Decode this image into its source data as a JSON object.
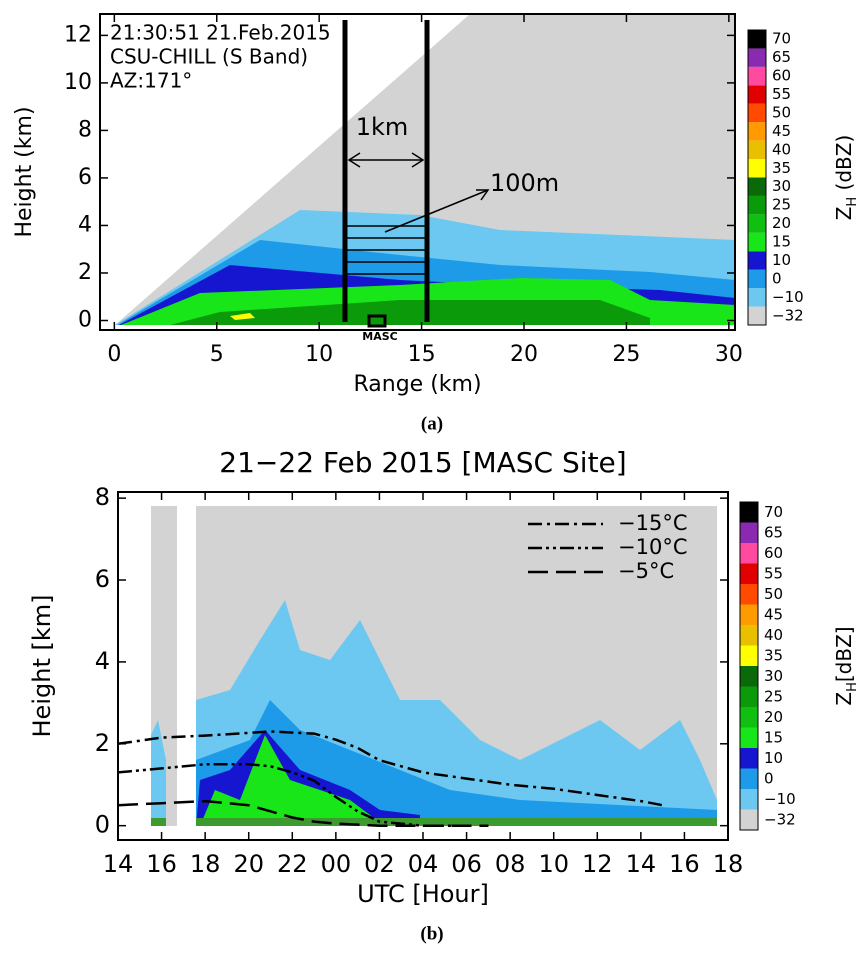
{
  "chart_data": [
    {
      "type": "rhi",
      "text_lines": [
        "21:30:51 21.Feb.2015",
        "CSU-CHILL (S Band)",
        "AZ:171°"
      ],
      "xlabel": "Range (km)",
      "ylabel": "Height (km)",
      "xlim": [
        -0.7,
        30.3
      ],
      "xticks": [
        0,
        5,
        10,
        15,
        20,
        25,
        30
      ],
      "ylim": [
        -0.4,
        12.9
      ],
      "yticks": [
        0,
        2,
        4,
        6,
        8,
        10,
        12
      ],
      "annotations": [
        "1km",
        "100m",
        "MASC"
      ],
      "colorbar": {
        "label": [
          "Z",
          "H",
          " (dBZ)"
        ],
        "ticks": [
          {
            "value": -32,
            "label": "−32"
          },
          {
            "value": -10,
            "label": "−10"
          },
          0,
          10,
          15,
          20,
          25,
          30,
          35,
          40,
          45,
          50,
          55,
          60,
          65,
          70
        ],
        "colors": [
          "#d3d3d3",
          "#6cc8f0",
          "#1e9be8",
          "#1616d0",
          "#19e619",
          "#10c010",
          "#0a9a0a",
          "#0a6a0a",
          "#ffff00",
          "#e8c000",
          "#ff9a00",
          "#ff4a00",
          "#e00000",
          "#ff4aa0",
          "#8a2ab0",
          "#000000"
        ]
      },
      "caption": "(a)"
    },
    {
      "type": "time-height",
      "title": "21−22 Feb 2015 [MASC Site]",
      "xlabel": "UTC [Hour]",
      "ylabel": "Height [km]",
      "xlim": [
        14,
        42
      ],
      "xticks": [
        14,
        16,
        18,
        20,
        22,
        {
          "value": 24,
          "label": "00"
        },
        {
          "value": 26,
          "label": "02"
        },
        {
          "value": 28,
          "label": "04"
        },
        {
          "value": 30,
          "label": "06"
        },
        {
          "value": 32,
          "label": "08"
        },
        {
          "value": 34,
          "label": "10"
        },
        {
          "value": 36,
          "label": "12"
        },
        {
          "value": 38,
          "label": "14"
        },
        {
          "value": 40,
          "label": "16"
        },
        {
          "value": 42,
          "label": "18"
        }
      ],
      "ylim": [
        -0.35,
        8.15
      ],
      "yticks": [
        0,
        2,
        4,
        6,
        8
      ],
      "legend": "upper right",
      "series": [
        {
          "name": "−15°C",
          "style": "dashdot",
          "color": "#000000",
          "x": [
            14,
            16,
            18,
            21,
            23,
            24,
            25,
            26,
            28,
            30,
            32,
            34,
            36,
            38,
            39
          ],
          "values": [
            2.0,
            2.15,
            2.2,
            2.3,
            2.25,
            2.1,
            1.9,
            1.6,
            1.3,
            1.15,
            1.0,
            0.9,
            0.75,
            0.6,
            0.5
          ]
        },
        {
          "name": "−10°C",
          "style": "dashdotdot",
          "color": "#000000",
          "x": [
            14,
            16,
            18,
            20,
            21,
            22,
            23,
            24,
            25,
            26,
            28,
            30
          ],
          "values": [
            1.3,
            1.4,
            1.5,
            1.5,
            1.45,
            1.3,
            1.1,
            0.7,
            0.35,
            0.1,
            0.0,
            0.0
          ]
        },
        {
          "name": "−5°C",
          "style": "longdash",
          "color": "#000000",
          "x": [
            14,
            16,
            18,
            20,
            21,
            22,
            23,
            24,
            26,
            28,
            31
          ],
          "values": [
            0.5,
            0.55,
            0.6,
            0.5,
            0.35,
            0.2,
            0.1,
            0.05,
            0.0,
            0.0,
            0.0
          ]
        }
      ],
      "colorbar": {
        "label": [
          "Z",
          "H",
          "[dBZ]"
        ],
        "ticks": [
          {
            "value": -32,
            "label": "−32"
          },
          {
            "value": -10,
            "label": "−10"
          },
          0,
          10,
          15,
          20,
          25,
          30,
          35,
          40,
          45,
          50,
          55,
          60,
          65,
          70
        ],
        "colors": [
          "#d3d3d3",
          "#6cc8f0",
          "#1e9be8",
          "#1616d0",
          "#19e619",
          "#10c010",
          "#0a9a0a",
          "#0a6a0a",
          "#ffff00",
          "#e8c000",
          "#ff9a00",
          "#ff4a00",
          "#e00000",
          "#ff4aa0",
          "#8a2ab0",
          "#000000"
        ]
      },
      "caption": "(b)"
    }
  ]
}
